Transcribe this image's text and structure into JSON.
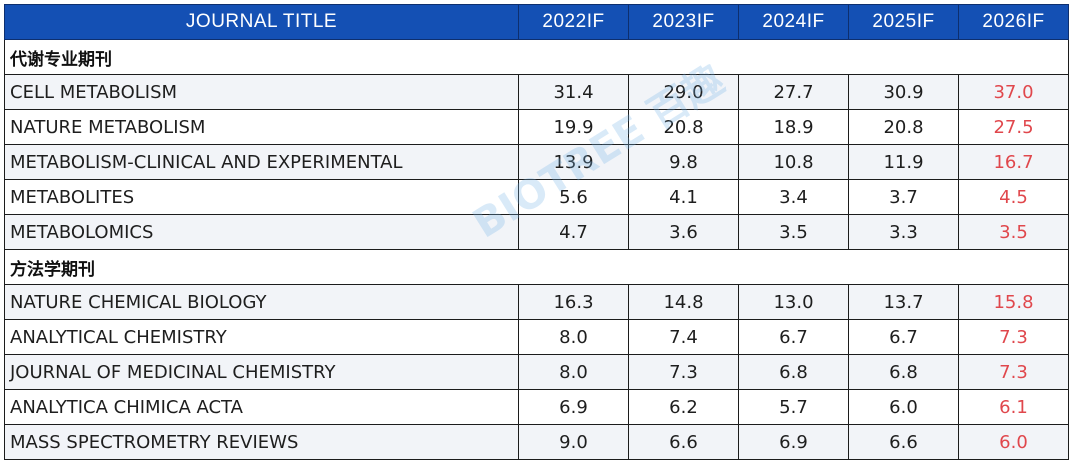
{
  "header": {
    "journal_title": "JOURNAL TITLE",
    "years": [
      "2022IF",
      "2023IF",
      "2024IF",
      "2025IF",
      "2026IF"
    ]
  },
  "sections": [
    {
      "name": "代谢专业期刊",
      "rows": [
        {
          "title": "CELL METABOLISM",
          "values": [
            "31.4",
            "29.0",
            "27.7",
            "30.9",
            "37.0"
          ]
        },
        {
          "title": "NATURE METABOLISM",
          "values": [
            "19.9",
            "20.8",
            "18.9",
            "20.8",
            "27.5"
          ]
        },
        {
          "title": "METABOLISM-CLINICAL AND EXPERIMENTAL",
          "values": [
            "13.9",
            "9.8",
            "10.8",
            "11.9",
            "16.7"
          ]
        },
        {
          "title": "METABOLITES",
          "values": [
            "5.6",
            "4.1",
            "3.4",
            "3.7",
            "4.5"
          ]
        },
        {
          "title": "METABOLOMICS",
          "values": [
            "4.7",
            "3.6",
            "3.5",
            "3.3",
            "3.5"
          ]
        }
      ]
    },
    {
      "name": "方法学期刊",
      "rows": [
        {
          "title": "NATURE CHEMICAL BIOLOGY",
          "values": [
            "16.3",
            "14.8",
            "13.0",
            "13.7",
            "15.8"
          ]
        },
        {
          "title": "ANALYTICAL CHEMISTRY",
          "values": [
            "8.0",
            "7.4",
            "6.7",
            "6.7",
            "7.3"
          ]
        },
        {
          "title": "JOURNAL OF MEDICINAL CHEMISTRY",
          "values": [
            "8.0",
            "7.3",
            "6.8",
            "6.8",
            "7.3"
          ]
        },
        {
          "title": "ANALYTICA CHIMICA ACTA",
          "values": [
            "6.9",
            "6.2",
            "5.7",
            "6.0",
            "6.1"
          ]
        },
        {
          "title": "MASS SPECTROMETRY REVIEWS",
          "values": [
            "9.0",
            "6.6",
            "6.9",
            "6.6",
            "6.0"
          ]
        }
      ]
    }
  ],
  "watermark": "BIOTREE 百趣",
  "colors": {
    "header_bg": "#1450b4",
    "header_text": "#ffffff",
    "highlight_2026": "#e0474c",
    "row_stripe": "#f2f4f8"
  }
}
